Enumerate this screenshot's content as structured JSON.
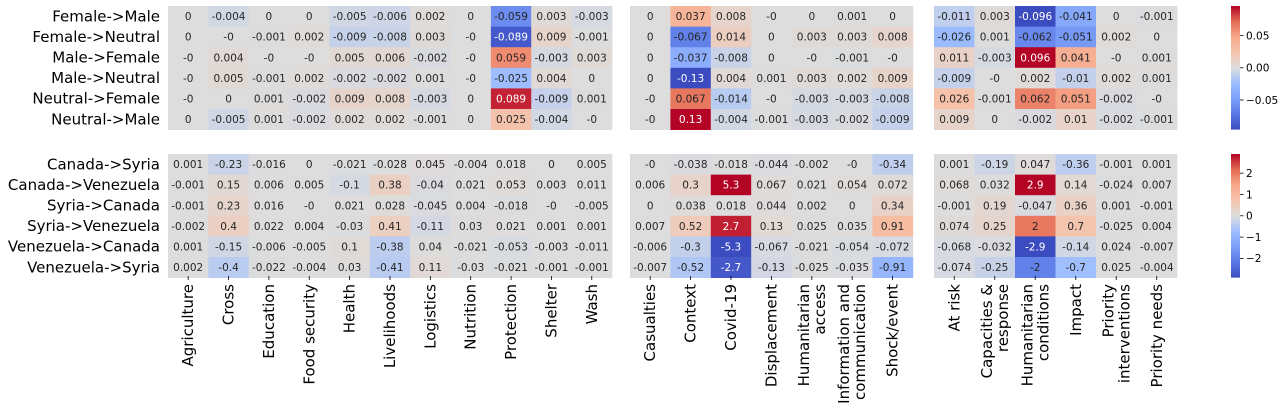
{
  "chart_data": {
    "type": "heatmap",
    "colormap": "coolwarm",
    "missing_cell_color": "#dddddd",
    "column_groups": [
      [
        "Agriculture",
        "Cross",
        "Education",
        "Food security",
        "Health",
        "Livelihoods",
        "Logistics",
        "Nutrition",
        "Protection",
        "Shelter",
        "Wash"
      ],
      [
        "Casualties",
        "Context",
        "Covid-19",
        "Displacement",
        "Humanitarian access",
        "Information and communication",
        "Shock/event"
      ],
      [
        "At risk",
        "Capacities & response",
        "Humanitarian conditions",
        "Impact",
        "Priority interventions",
        "Priority needs"
      ]
    ],
    "panels": [
      {
        "rows": [
          "Female->Male",
          "Female->Neutral",
          "Male->Female",
          "Male->Neutral",
          "Neutral->Female",
          "Neutral->Male"
        ],
        "colorbar_range": [
          -0.096,
          0.096
        ],
        "colorbar_ticks": [
          -0.05,
          0.0,
          0.05
        ],
        "colorbar_tick_labels": [
          "−0.05",
          "0.00",
          "0.05"
        ],
        "groups": [
          {
            "values": [
              [
                0,
                -0.004,
                0,
                0,
                -0.005,
                -0.006,
                0.002,
                0,
                -0.059,
                0.003,
                -0.003
              ],
              [
                0,
                0,
                -0.001,
                0.002,
                -0.009,
                -0.008,
                0.003,
                0,
                -0.089,
                0.009,
                -0.001
              ],
              [
                0,
                0.004,
                0,
                0,
                0.005,
                0.006,
                -0.002,
                0,
                0.059,
                -0.003,
                0.003
              ],
              [
                0,
                0.005,
                -0.001,
                0.002,
                -0.002,
                -0.002,
                0.001,
                0,
                -0.025,
                0.004,
                0
              ],
              [
                0,
                0,
                0.001,
                -0.002,
                0.009,
                0.008,
                -0.003,
                0,
                0.089,
                -0.009,
                0.001
              ],
              [
                0,
                -0.005,
                0.001,
                -0.002,
                0.002,
                0.002,
                -0.001,
                0,
                0.025,
                -0.004,
                0
              ]
            ],
            "labels": [
              [
                "0",
                "-0.004",
                "0",
                "0",
                "-0.005",
                "-0.006",
                "0.002",
                "0",
                "-0.059",
                "0.003",
                "-0.003"
              ],
              [
                "0",
                "-0",
                "-0.001",
                "0.002",
                "-0.009",
                "-0.008",
                "0.003",
                "-0",
                "-0.089",
                "0.009",
                "-0.001"
              ],
              [
                "-0",
                "0.004",
                "-0",
                "-0",
                "0.005",
                "0.006",
                "-0.002",
                "-0",
                "0.059",
                "-0.003",
                "0.003"
              ],
              [
                "-0",
                "0.005",
                "-0.001",
                "0.002",
                "-0.002",
                "-0.002",
                "0.001",
                "-0",
                "-0.025",
                "0.004",
                "0"
              ],
              [
                "-0",
                "0",
                "0.001",
                "-0.002",
                "0.009",
                "0.008",
                "-0.003",
                "0",
                "0.089",
                "-0.009",
                "0.001"
              ],
              [
                "0",
                "-0.005",
                "0.001",
                "-0.002",
                "0.002",
                "0.002",
                "-0.001",
                "0",
                "0.025",
                "-0.004",
                "-0"
              ]
            ]
          },
          {
            "values": [
              [
                0,
                0.037,
                0.008,
                0,
                0,
                0.001,
                0
              ],
              [
                0,
                -0.067,
                0.014,
                0,
                0.003,
                0.003,
                0.008
              ],
              [
                0,
                -0.037,
                -0.008,
                0,
                0,
                -0.001,
                0
              ],
              [
                0,
                -0.13,
                0.004,
                0.001,
                0.003,
                0.002,
                0.009
              ],
              [
                0,
                0.067,
                -0.014,
                0,
                -0.003,
                -0.003,
                -0.008
              ],
              [
                0,
                0.13,
                -0.004,
                -0.001,
                -0.003,
                -0.002,
                -0.009
              ]
            ],
            "labels": [
              [
                "0",
                "0.037",
                "0.008",
                "-0",
                "0",
                "0.001",
                "0"
              ],
              [
                "0",
                "-0.067",
                "0.014",
                "0",
                "0.003",
                "0.003",
                "0.008"
              ],
              [
                "0",
                "-0.037",
                "-0.008",
                "0",
                "-0",
                "-0.001",
                "-0"
              ],
              [
                "0",
                "-0.13",
                "0.004",
                "0.001",
                "0.003",
                "0.002",
                "0.009"
              ],
              [
                "-0",
                "0.067",
                "-0.014",
                "-0",
                "-0.003",
                "-0.003",
                "-0.008"
              ],
              [
                "-0",
                "0.13",
                "-0.004",
                "-0.001",
                "-0.003",
                "-0.002",
                "-0.009"
              ]
            ]
          },
          {
            "values": [
              [
                -0.011,
                0.003,
                -0.096,
                -0.041,
                0,
                -0.001
              ],
              [
                -0.026,
                0.001,
                -0.062,
                -0.051,
                0.002,
                0
              ],
              [
                0.011,
                -0.003,
                0.096,
                0.041,
                0,
                0.001
              ],
              [
                -0.009,
                0,
                0.002,
                -0.01,
                0.002,
                0.001
              ],
              [
                0.026,
                -0.001,
                0.062,
                0.051,
                -0.002,
                0
              ],
              [
                0.009,
                0,
                -0.002,
                0.01,
                -0.002,
                -0.001
              ]
            ],
            "labels": [
              [
                "-0.011",
                "0.003",
                "-0.096",
                "-0.041",
                "0",
                "-0.001"
              ],
              [
                "-0.026",
                "0.001",
                "-0.062",
                "-0.051",
                "0.002",
                "0"
              ],
              [
                "0.011",
                "-0.003",
                "0.096",
                "0.041",
                "-0",
                "0.001"
              ],
              [
                "-0.009",
                "-0",
                "0.002",
                "-0.01",
                "0.002",
                "0.001"
              ],
              [
                "0.026",
                "-0.001",
                "0.062",
                "0.051",
                "-0.002",
                "-0"
              ],
              [
                "0.009",
                "0",
                "-0.002",
                "0.01",
                "-0.002",
                "-0.001"
              ]
            ]
          }
        ]
      },
      {
        "rows": [
          "Canada->Syria",
          "Canada->Venezuela",
          "Syria->Canada",
          "Syria->Venezuela",
          "Venezuela->Canada",
          "Venezuela->Syria"
        ],
        "colorbar_range": [
          -2.9,
          2.9
        ],
        "colorbar_ticks": [
          -2,
          -1,
          0,
          1,
          2
        ],
        "colorbar_tick_labels": [
          "−2",
          "−1",
          "0",
          "1",
          "2"
        ],
        "groups": [
          {
            "values": [
              [
                0.001,
                -0.23,
                -0.016,
                0,
                -0.021,
                -0.028,
                0.045,
                -0.004,
                0.018,
                0,
                0.005
              ],
              [
                -0.001,
                0.15,
                0.006,
                0.005,
                -0.1,
                0.38,
                -0.04,
                0.021,
                0.053,
                0.003,
                0.011
              ],
              [
                -0.001,
                0.23,
                0.016,
                0,
                0.021,
                0.028,
                -0.045,
                0.004,
                -0.018,
                0,
                -0.005
              ],
              [
                -0.002,
                0.4,
                0.022,
                0.004,
                -0.03,
                0.41,
                -0.11,
                0.03,
                0.021,
                0.001,
                0.001
              ],
              [
                0.001,
                -0.15,
                -0.006,
                -0.005,
                0.1,
                -0.38,
                0.04,
                -0.021,
                -0.053,
                -0.003,
                -0.011
              ],
              [
                0.002,
                -0.4,
                -0.022,
                -0.004,
                0.03,
                -0.41,
                0.11,
                -0.03,
                -0.021,
                -0.001,
                -0.001
              ]
            ],
            "labels": [
              [
                "0.001",
                "-0.23",
                "-0.016",
                "0",
                "-0.021",
                "-0.028",
                "0.045",
                "-0.004",
                "0.018",
                "0",
                "0.005"
              ],
              [
                "-0.001",
                "0.15",
                "0.006",
                "0.005",
                "-0.1",
                "0.38",
                "-0.04",
                "0.021",
                "0.053",
                "0.003",
                "0.011"
              ],
              [
                "-0.001",
                "0.23",
                "0.016",
                "-0",
                "0.021",
                "0.028",
                "-0.045",
                "0.004",
                "-0.018",
                "-0",
                "-0.005"
              ],
              [
                "-0.002",
                "0.4",
                "0.022",
                "0.004",
                "-0.03",
                "0.41",
                "-0.11",
                "0.03",
                "0.021",
                "0.001",
                "0.001"
              ],
              [
                "0.001",
                "-0.15",
                "-0.006",
                "-0.005",
                "0.1",
                "-0.38",
                "0.04",
                "-0.021",
                "-0.053",
                "-0.003",
                "-0.011"
              ],
              [
                "0.002",
                "-0.4",
                "-0.022",
                "-0.004",
                "0.03",
                "-0.41",
                "0.11",
                "-0.03",
                "-0.021",
                "-0.001",
                "-0.001"
              ]
            ]
          },
          {
            "values": [
              [
                0,
                -0.038,
                -0.018,
                -0.044,
                -0.002,
                0,
                -0.34
              ],
              [
                0.006,
                0.3,
                5.3,
                0.067,
                0.021,
                0.054,
                0.072
              ],
              [
                0,
                0.038,
                0.018,
                0.044,
                0.002,
                0,
                0.34
              ],
              [
                0.007,
                0.52,
                2.7,
                0.13,
                0.025,
                0.035,
                0.91
              ],
              [
                -0.006,
                -0.3,
                -5.3,
                -0.067,
                -0.021,
                -0.054,
                -0.072
              ],
              [
                -0.007,
                -0.52,
                -2.7,
                -0.13,
                -0.025,
                -0.035,
                -0.91
              ]
            ],
            "labels": [
              [
                "-0",
                "-0.038",
                "-0.018",
                "-0.044",
                "-0.002",
                "-0",
                "-0.34"
              ],
              [
                "0.006",
                "0.3",
                "5.3",
                "0.067",
                "0.021",
                "0.054",
                "0.072"
              ],
              [
                "0",
                "0.038",
                "0.018",
                "0.044",
                "0.002",
                "0",
                "0.34"
              ],
              [
                "0.007",
                "0.52",
                "2.7",
                "0.13",
                "0.025",
                "0.035",
                "0.91"
              ],
              [
                "-0.006",
                "-0.3",
                "-5.3",
                "-0.067",
                "-0.021",
                "-0.054",
                "-0.072"
              ],
              [
                "-0.007",
                "-0.52",
                "-2.7",
                "-0.13",
                "-0.025",
                "-0.035",
                "-0.91"
              ]
            ]
          },
          {
            "values": [
              [
                0.001,
                -0.19,
                0.047,
                -0.36,
                -0.001,
                0.001
              ],
              [
                0.068,
                0.032,
                2.9,
                0.14,
                -0.024,
                0.007
              ],
              [
                -0.001,
                0.19,
                -0.047,
                0.36,
                0.001,
                -0.001
              ],
              [
                0.074,
                0.25,
                2,
                0.7,
                -0.025,
                0.004
              ],
              [
                -0.068,
                -0.032,
                -2.9,
                -0.14,
                0.024,
                -0.007
              ],
              [
                -0.074,
                -0.25,
                -2,
                -0.7,
                0.025,
                -0.004
              ]
            ],
            "labels": [
              [
                "0.001",
                "-0.19",
                "0.047",
                "-0.36",
                "-0.001",
                "0.001"
              ],
              [
                "0.068",
                "0.032",
                "2.9",
                "0.14",
                "-0.024",
                "0.007"
              ],
              [
                "-0.001",
                "0.19",
                "-0.047",
                "0.36",
                "0.001",
                "-0.001"
              ],
              [
                "0.074",
                "0.25",
                "2",
                "0.7",
                "-0.025",
                "0.004"
              ],
              [
                "-0.068",
                "-0.032",
                "-2.9",
                "-0.14",
                "0.024",
                "-0.007"
              ],
              [
                "-0.074",
                "-0.25",
                "-2",
                "-0.7",
                "0.025",
                "-0.004"
              ]
            ]
          }
        ]
      }
    ]
  }
}
